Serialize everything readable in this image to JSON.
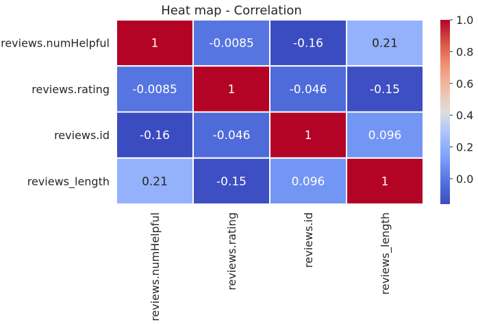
{
  "chart_data": {
    "type": "heatmap",
    "title": "Heat map - Correlation",
    "xlabel": "",
    "ylabel": "",
    "row_labels": [
      "reviews.numHelpful",
      "reviews.rating",
      "reviews.id",
      "reviews_length"
    ],
    "col_labels": [
      "reviews.numHelpful",
      "reviews.rating",
      "reviews.id",
      "reviews_length"
    ],
    "values": [
      [
        1,
        -0.0085,
        -0.16,
        0.21
      ],
      [
        -0.0085,
        1,
        -0.046,
        -0.15
      ],
      [
        -0.16,
        -0.046,
        1,
        0.096
      ],
      [
        0.21,
        -0.15,
        0.096,
        1
      ]
    ],
    "cell_labels": [
      [
        "1",
        "-0.0085",
        "-0.16",
        "0.21"
      ],
      [
        "-0.0085",
        "1",
        "-0.046",
        "-0.15"
      ],
      [
        "-0.16",
        "-0.046",
        "1",
        "0.096"
      ],
      [
        "0.21",
        "-0.15",
        "0.096",
        "1"
      ]
    ],
    "colormap": "coolwarm",
    "vmin": -0.16,
    "vmax": 1.0,
    "colorbar": {
      "ticks": [
        0.0,
        0.2,
        0.4,
        0.6,
        0.8,
        1.0
      ],
      "tick_labels": [
        "0.0",
        "0.2",
        "0.4",
        "0.6",
        "0.8",
        "1.0"
      ]
    },
    "annotated": true,
    "gridlines": "white"
  }
}
